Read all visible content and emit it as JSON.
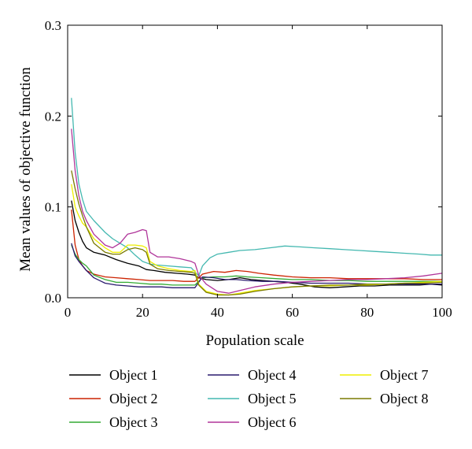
{
  "chart_data": {
    "type": "line",
    "title": "",
    "xlabel": "Population scale",
    "ylabel": "Mean values of objective function",
    "xlim": [
      0,
      100
    ],
    "ylim": [
      0,
      0.3
    ],
    "x_ticks": [
      0,
      20,
      40,
      60,
      80,
      100
    ],
    "x_tick_labels": [
      "0",
      "20",
      "40",
      "60",
      "80",
      "100"
    ],
    "y_ticks": [
      0,
      0.1,
      0.2,
      0.3
    ],
    "y_tick_labels": [
      "0.0",
      "0.1",
      "0.2",
      "0.3"
    ],
    "grid": false,
    "legend_position": "bottom",
    "series": [
      {
        "name": "Object 1",
        "color": "#000000",
        "points": [
          [
            1,
            0.107
          ],
          [
            2,
            0.085
          ],
          [
            3,
            0.072
          ],
          [
            4,
            0.062
          ],
          [
            5,
            0.055
          ],
          [
            7,
            0.05
          ],
          [
            10,
            0.047
          ],
          [
            13,
            0.042
          ],
          [
            16,
            0.038
          ],
          [
            19,
            0.035
          ],
          [
            21,
            0.031
          ],
          [
            23,
            0.03
          ],
          [
            26,
            0.028
          ],
          [
            29,
            0.027
          ],
          [
            32,
            0.026
          ],
          [
            34,
            0.025
          ],
          [
            35,
            0.022
          ],
          [
            37,
            0.02
          ],
          [
            40,
            0.019
          ],
          [
            43,
            0.02
          ],
          [
            46,
            0.022
          ],
          [
            49,
            0.02
          ],
          [
            52,
            0.019
          ],
          [
            55,
            0.018
          ],
          [
            58,
            0.017
          ],
          [
            62,
            0.015
          ],
          [
            66,
            0.012
          ],
          [
            70,
            0.011
          ],
          [
            74,
            0.012
          ],
          [
            78,
            0.013
          ],
          [
            82,
            0.013
          ],
          [
            86,
            0.014
          ],
          [
            90,
            0.014
          ],
          [
            94,
            0.014
          ],
          [
            97,
            0.015
          ],
          [
            100,
            0.014
          ]
        ]
      },
      {
        "name": "Object 2",
        "color": "#cc2200",
        "points": [
          [
            1,
            0.097
          ],
          [
            2,
            0.058
          ],
          [
            3,
            0.042
          ],
          [
            4,
            0.035
          ],
          [
            5,
            0.03
          ],
          [
            7,
            0.026
          ],
          [
            10,
            0.023
          ],
          [
            13,
            0.022
          ],
          [
            16,
            0.021
          ],
          [
            19,
            0.02
          ],
          [
            22,
            0.019
          ],
          [
            25,
            0.019
          ],
          [
            28,
            0.019
          ],
          [
            31,
            0.018
          ],
          [
            34,
            0.018
          ],
          [
            36,
            0.026
          ],
          [
            39,
            0.029
          ],
          [
            42,
            0.028
          ],
          [
            45,
            0.03
          ],
          [
            48,
            0.029
          ],
          [
            51,
            0.027
          ],
          [
            55,
            0.025
          ],
          [
            60,
            0.023
          ],
          [
            65,
            0.022
          ],
          [
            70,
            0.022
          ],
          [
            75,
            0.021
          ],
          [
            80,
            0.021
          ],
          [
            85,
            0.021
          ],
          [
            90,
            0.021
          ],
          [
            95,
            0.02
          ],
          [
            100,
            0.02
          ]
        ]
      },
      {
        "name": "Object 3",
        "color": "#33aa33",
        "points": [
          [
            1,
            0.058
          ],
          [
            2,
            0.048
          ],
          [
            3,
            0.042
          ],
          [
            4,
            0.038
          ],
          [
            5,
            0.035
          ],
          [
            7,
            0.025
          ],
          [
            10,
            0.02
          ],
          [
            13,
            0.017
          ],
          [
            16,
            0.017
          ],
          [
            19,
            0.016
          ],
          [
            22,
            0.015
          ],
          [
            25,
            0.015
          ],
          [
            28,
            0.014
          ],
          [
            31,
            0.014
          ],
          [
            34,
            0.014
          ],
          [
            36,
            0.022
          ],
          [
            39,
            0.023
          ],
          [
            42,
            0.023
          ],
          [
            45,
            0.024
          ],
          [
            48,
            0.023
          ],
          [
            52,
            0.022
          ],
          [
            56,
            0.021
          ],
          [
            60,
            0.02
          ],
          [
            65,
            0.02
          ],
          [
            70,
            0.019
          ],
          [
            75,
            0.019
          ],
          [
            80,
            0.018
          ],
          [
            85,
            0.018
          ],
          [
            90,
            0.018
          ],
          [
            95,
            0.018
          ],
          [
            100,
            0.018
          ]
        ]
      },
      {
        "name": "Object 4",
        "color": "#2a1a6e",
        "points": [
          [
            1,
            0.06
          ],
          [
            2,
            0.046
          ],
          [
            3,
            0.04
          ],
          [
            4,
            0.035
          ],
          [
            5,
            0.03
          ],
          [
            7,
            0.022
          ],
          [
            10,
            0.016
          ],
          [
            13,
            0.014
          ],
          [
            16,
            0.013
          ],
          [
            19,
            0.012
          ],
          [
            22,
            0.012
          ],
          [
            25,
            0.012
          ],
          [
            28,
            0.011
          ],
          [
            31,
            0.011
          ],
          [
            34,
            0.011
          ],
          [
            36,
            0.023
          ],
          [
            39,
            0.022
          ],
          [
            42,
            0.02
          ],
          [
            45,
            0.02
          ],
          [
            48,
            0.019
          ],
          [
            52,
            0.018
          ],
          [
            56,
            0.018
          ],
          [
            60,
            0.017
          ],
          [
            65,
            0.016
          ],
          [
            70,
            0.016
          ],
          [
            75,
            0.016
          ],
          [
            80,
            0.015
          ],
          [
            85,
            0.015
          ],
          [
            90,
            0.015
          ],
          [
            95,
            0.015
          ],
          [
            100,
            0.015
          ]
        ]
      },
      {
        "name": "Object 5",
        "color": "#44b8b0",
        "points": [
          [
            1,
            0.22
          ],
          [
            2,
            0.16
          ],
          [
            3,
            0.125
          ],
          [
            4,
            0.108
          ],
          [
            5,
            0.095
          ],
          [
            7,
            0.085
          ],
          [
            10,
            0.072
          ],
          [
            12,
            0.065
          ],
          [
            14,
            0.06
          ],
          [
            16,
            0.055
          ],
          [
            18,
            0.047
          ],
          [
            20,
            0.04
          ],
          [
            22,
            0.037
          ],
          [
            24,
            0.036
          ],
          [
            27,
            0.035
          ],
          [
            30,
            0.034
          ],
          [
            33,
            0.033
          ],
          [
            35,
            0.024
          ],
          [
            36,
            0.035
          ],
          [
            38,
            0.044
          ],
          [
            40,
            0.048
          ],
          [
            43,
            0.05
          ],
          [
            46,
            0.052
          ],
          [
            50,
            0.053
          ],
          [
            54,
            0.055
          ],
          [
            58,
            0.057
          ],
          [
            62,
            0.056
          ],
          [
            66,
            0.055
          ],
          [
            70,
            0.054
          ],
          [
            74,
            0.053
          ],
          [
            78,
            0.052
          ],
          [
            82,
            0.051
          ],
          [
            86,
            0.05
          ],
          [
            90,
            0.049
          ],
          [
            94,
            0.048
          ],
          [
            97,
            0.047
          ],
          [
            100,
            0.047
          ]
        ]
      },
      {
        "name": "Object 6",
        "color": "#b0359a",
        "points": [
          [
            1,
            0.186
          ],
          [
            2,
            0.14
          ],
          [
            3,
            0.112
          ],
          [
            4,
            0.095
          ],
          [
            5,
            0.085
          ],
          [
            7,
            0.07
          ],
          [
            10,
            0.058
          ],
          [
            12,
            0.055
          ],
          [
            14,
            0.06
          ],
          [
            16,
            0.07
          ],
          [
            18,
            0.072
          ],
          [
            20,
            0.075
          ],
          [
            21,
            0.074
          ],
          [
            22,
            0.05
          ],
          [
            24,
            0.045
          ],
          [
            27,
            0.045
          ],
          [
            30,
            0.043
          ],
          [
            33,
            0.04
          ],
          [
            34,
            0.038
          ],
          [
            35,
            0.025
          ],
          [
            37,
            0.015
          ],
          [
            40,
            0.007
          ],
          [
            43,
            0.005
          ],
          [
            46,
            0.008
          ],
          [
            50,
            0.012
          ],
          [
            55,
            0.015
          ],
          [
            60,
            0.017
          ],
          [
            65,
            0.018
          ],
          [
            70,
            0.019
          ],
          [
            75,
            0.02
          ],
          [
            80,
            0.02
          ],
          [
            85,
            0.021
          ],
          [
            90,
            0.022
          ],
          [
            95,
            0.024
          ],
          [
            100,
            0.027
          ]
        ]
      },
      {
        "name": "Object 7",
        "color": "#eeee00",
        "points": [
          [
            1,
            0.125
          ],
          [
            2,
            0.1
          ],
          [
            3,
            0.09
          ],
          [
            4,
            0.082
          ],
          [
            5,
            0.078
          ],
          [
            7,
            0.065
          ],
          [
            10,
            0.055
          ],
          [
            12,
            0.05
          ],
          [
            14,
            0.05
          ],
          [
            16,
            0.058
          ],
          [
            18,
            0.058
          ],
          [
            20,
            0.057
          ],
          [
            21,
            0.055
          ],
          [
            22,
            0.04
          ],
          [
            24,
            0.035
          ],
          [
            27,
            0.032
          ],
          [
            30,
            0.03
          ],
          [
            33,
            0.029
          ],
          [
            34,
            0.03
          ],
          [
            35,
            0.015
          ],
          [
            37,
            0.007
          ],
          [
            40,
            0.004
          ],
          [
            43,
            0.003
          ],
          [
            46,
            0.005
          ],
          [
            50,
            0.008
          ],
          [
            55,
            0.01
          ],
          [
            60,
            0.012
          ],
          [
            65,
            0.013
          ],
          [
            70,
            0.013
          ],
          [
            75,
            0.014
          ],
          [
            80,
            0.014
          ],
          [
            85,
            0.015
          ],
          [
            90,
            0.016
          ],
          [
            95,
            0.017
          ],
          [
            100,
            0.018
          ]
        ]
      },
      {
        "name": "Object 8",
        "color": "#7a7a00",
        "points": [
          [
            1,
            0.14
          ],
          [
            2,
            0.12
          ],
          [
            3,
            0.103
          ],
          [
            4,
            0.09
          ],
          [
            5,
            0.078
          ],
          [
            7,
            0.06
          ],
          [
            10,
            0.05
          ],
          [
            12,
            0.048
          ],
          [
            14,
            0.048
          ],
          [
            16,
            0.053
          ],
          [
            18,
            0.055
          ],
          [
            20,
            0.053
          ],
          [
            21,
            0.05
          ],
          [
            22,
            0.037
          ],
          [
            24,
            0.032
          ],
          [
            27,
            0.03
          ],
          [
            30,
            0.029
          ],
          [
            33,
            0.028
          ],
          [
            34,
            0.027
          ],
          [
            35,
            0.014
          ],
          [
            37,
            0.006
          ],
          [
            40,
            0.003
          ],
          [
            43,
            0.003
          ],
          [
            46,
            0.004
          ],
          [
            50,
            0.007
          ],
          [
            55,
            0.01
          ],
          [
            60,
            0.012
          ],
          [
            65,
            0.013
          ],
          [
            70,
            0.014
          ],
          [
            75,
            0.014
          ],
          [
            80,
            0.015
          ],
          [
            85,
            0.015
          ],
          [
            90,
            0.016
          ],
          [
            95,
            0.016
          ],
          [
            100,
            0.017
          ]
        ]
      }
    ]
  }
}
